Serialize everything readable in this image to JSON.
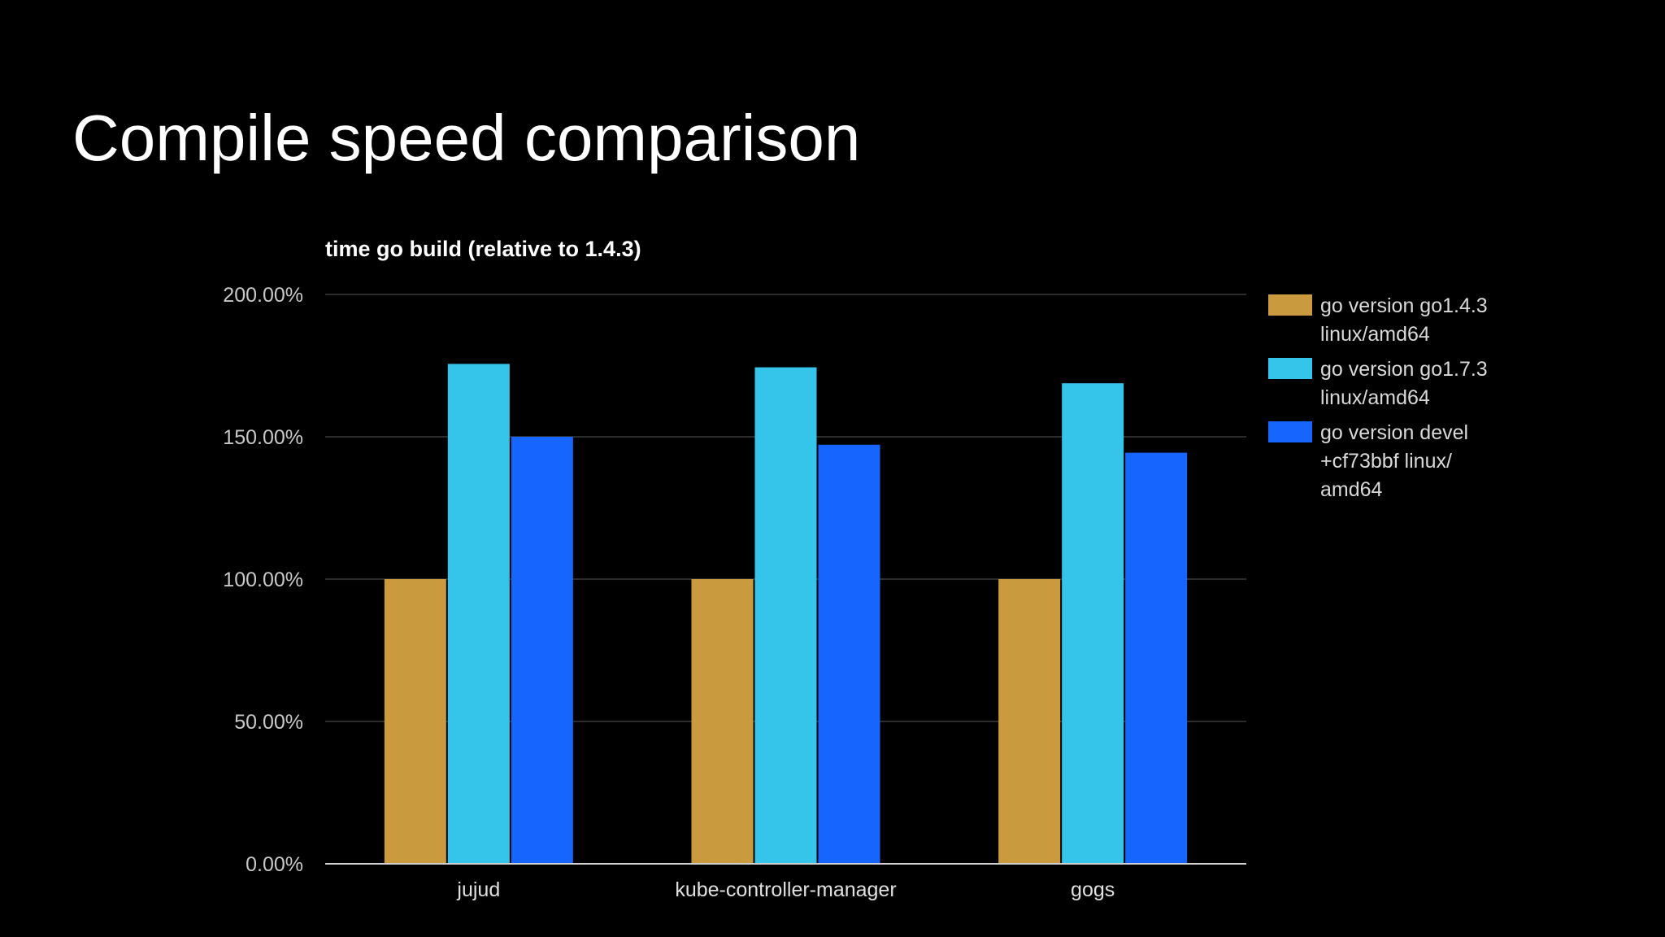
{
  "slide": {
    "title": "Compile speed comparison"
  },
  "chart_data": {
    "type": "bar",
    "title": "time go build (relative to 1.4.3)",
    "xlabel": "",
    "ylabel": "",
    "categories": [
      "jujud",
      "kube-controller-manager",
      "gogs"
    ],
    "series": [
      {
        "name": "go version go1.4.3 linux/amd64",
        "legend_lines": [
          "go version go1.4.3",
          "linux/amd64"
        ],
        "color": "#c99a3e",
        "values": [
          100.0,
          100.0,
          100.0
        ]
      },
      {
        "name": "go version go1.7.3 linux/amd64",
        "legend_lines": [
          "go version go1.7.3",
          "linux/amd64"
        ],
        "color": "#35c4ea",
        "values": [
          175.6,
          174.4,
          168.8
        ]
      },
      {
        "name": "go version devel +cf73bbf linux/amd64",
        "legend_lines": [
          "go version devel",
          "+cf73bbf linux/",
          "amd64"
        ],
        "color": "#1565fe",
        "values": [
          150.0,
          147.2,
          144.4
        ]
      }
    ],
    "ylim": [
      0,
      200
    ],
    "yticks": [
      0,
      50,
      100,
      150,
      200
    ],
    "ytick_labels": [
      "0.00%",
      "50.00%",
      "100.00%",
      "150.00%",
      "200.00%"
    ],
    "grid": true,
    "legend_position": "right"
  }
}
